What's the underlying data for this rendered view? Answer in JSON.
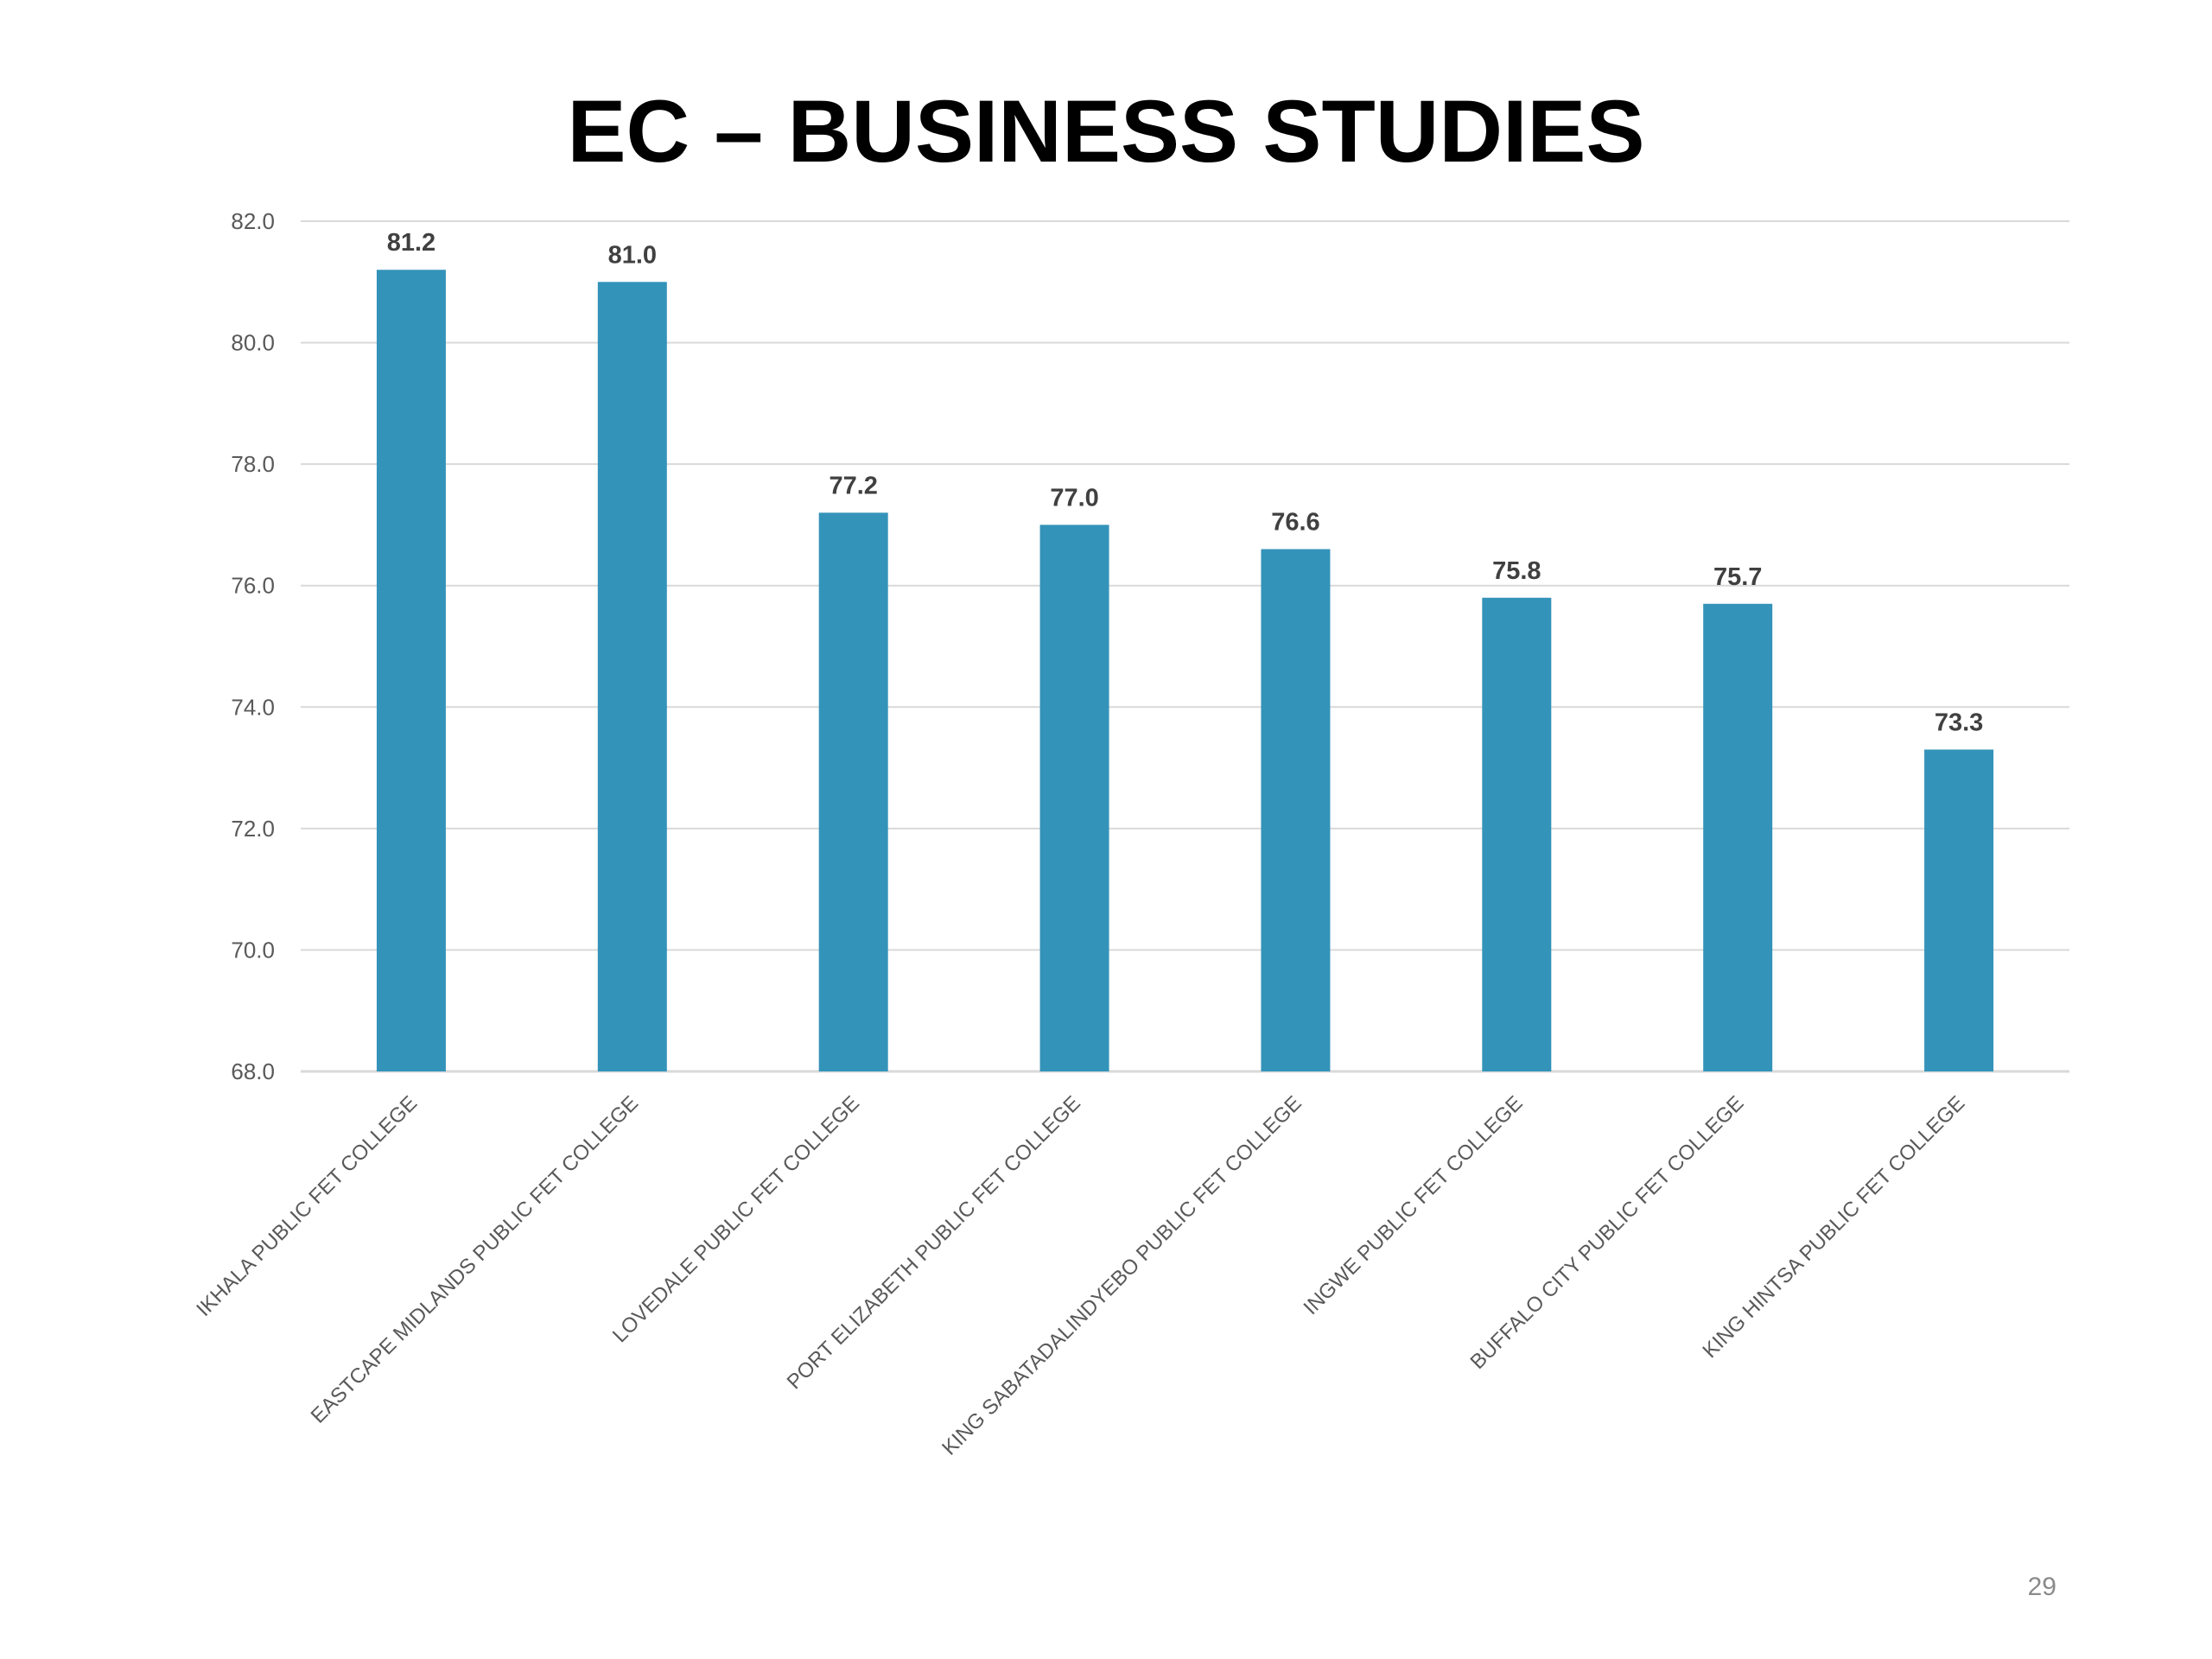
{
  "slide": {
    "title": "EC – BUSINESS STUDIES",
    "page_number": "29"
  },
  "colors": {
    "bar": "#3493B9",
    "gridline": "#D9D9D9",
    "tick_label": "#595959",
    "data_label": "#404040"
  },
  "chart_data": {
    "type": "bar",
    "title": "",
    "xlabel": "",
    "ylabel": "",
    "categories": [
      "IKHALA PUBLIC FET COLLEGE",
      "EASTCAPE MIDLANDS PUBLIC FET COLLEGE",
      "LOVEDALE PUBLIC FET COLLEGE",
      "PORT ELIZABETH PUBLIC FET COLLEGE",
      "KING SABATADALINDYEBO PUBLIC FET COLLEGE",
      "INGWE PUBLIC FET COLLEGE",
      "BUFFALO CITY PUBLIC FET COLLEGE",
      "KING HINTSA PUBLIC FET COLLEGE"
    ],
    "values": [
      81.2,
      81.0,
      77.2,
      77.0,
      76.6,
      75.8,
      75.7,
      73.3
    ],
    "data_labels": [
      "81.2",
      "81.0",
      "77.2",
      "77.0",
      "76.6",
      "75.8",
      "75.7",
      "73.3"
    ],
    "ylim": [
      68.0,
      82.0
    ],
    "y_ticks": [
      68.0,
      70.0,
      72.0,
      74.0,
      76.0,
      78.0,
      80.0,
      82.0
    ],
    "y_tick_labels": [
      "68.0",
      "70.0",
      "72.0",
      "74.0",
      "76.0",
      "78.0",
      "80.0",
      "82.0"
    ],
    "grid": true,
    "legend": "none",
    "x_label_rotation_deg": -45
  }
}
